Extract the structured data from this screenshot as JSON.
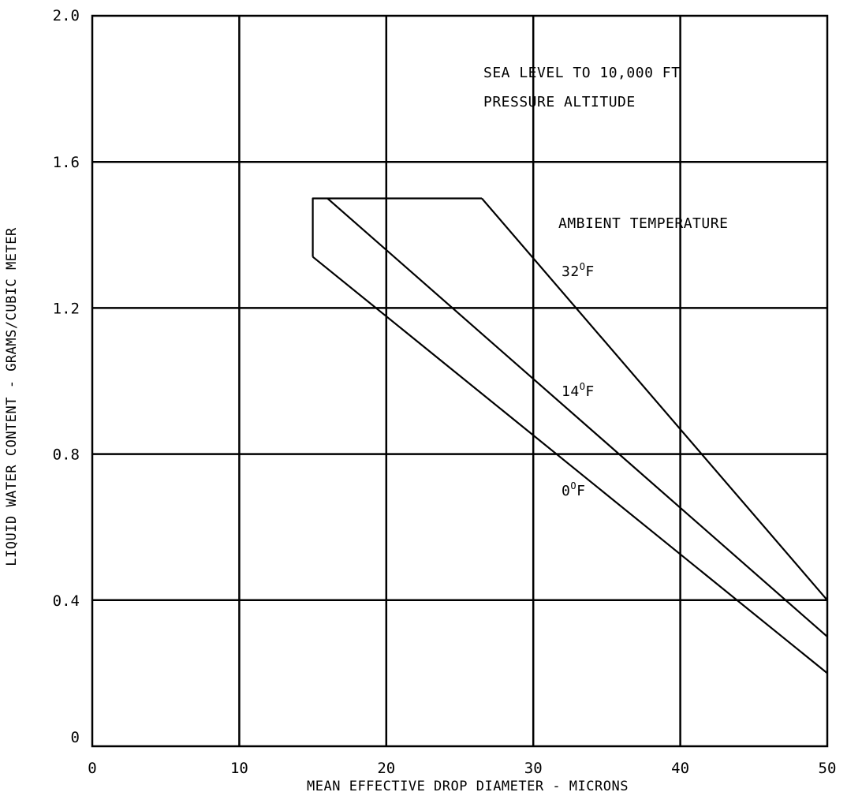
{
  "chart_data": {
    "type": "line",
    "xlabel": "MEAN EFFECTIVE DROP DIAMETER - MICRONS",
    "ylabel": "LIQUID WATER CONTENT - GRAMS/CUBIC METER",
    "xlim": [
      0,
      50
    ],
    "ylim": [
      0,
      2.0
    ],
    "x_ticks": [
      0,
      10,
      20,
      30,
      40,
      50
    ],
    "x_tick_labels": [
      "0",
      "10",
      "20",
      "30",
      "40",
      "50"
    ],
    "y_ticks": [
      0,
      0.4,
      0.8,
      1.2,
      1.6,
      2.0
    ],
    "y_tick_labels": [
      "0",
      "0.4",
      "0.8",
      "1.2",
      "1.6",
      "2.0"
    ],
    "grid": true,
    "annotations": {
      "altitude_line1": "SEA LEVEL TO 10,000 FT",
      "altitude_line2": "PRESSURE ALTITUDE",
      "legend_title": "AMBIENT TEMPERATURE"
    },
    "envelope": {
      "x": [
        15,
        15,
        26.5
      ],
      "y": [
        1.34,
        1.5,
        1.5
      ]
    },
    "series": [
      {
        "name": "32°F",
        "label_base": "32",
        "x": [
          26.5,
          50
        ],
        "y": [
          1.5,
          0.4
        ]
      },
      {
        "name": "14°F",
        "label_base": "14",
        "x": [
          16,
          50
        ],
        "y": [
          1.5,
          0.3
        ]
      },
      {
        "name": "0°F",
        "label_base": "0",
        "x": [
          15,
          50
        ],
        "y": [
          1.34,
          0.2
        ]
      }
    ],
    "degree_symbol": "O",
    "unit": "F"
  }
}
